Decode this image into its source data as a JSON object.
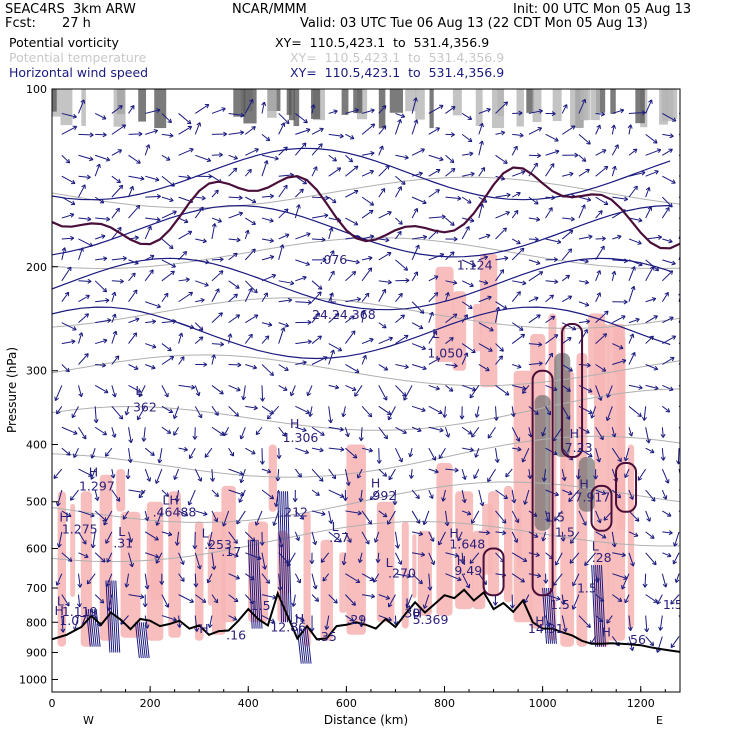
{
  "header": {
    "model": "SEAC4RS  3km ARW",
    "fcst_label": "Fcst:",
    "fcst_value": "27 h",
    "center": "NCAR/MMM",
    "init": "Init: 00 UTC Mon 05 Aug 13",
    "valid": "Valid: 03 UTC Tue 06 Aug 13 (22 CDT Mon 05 Aug 13)"
  },
  "legend": [
    {
      "name": "Potential vorticity",
      "xy": "XY=  110.5,423.1  to  531.4,356.9",
      "color": "#000000"
    },
    {
      "name": "Potential temperature",
      "xy": "XY=  110.5,423.1  to  531.4,356.9",
      "color": "#c0c0c0"
    },
    {
      "name": "Horizontal wind speed",
      "xy": "XY=  110.5,423.1  to  531.4,356.9",
      "color": "#1a1a80"
    }
  ],
  "chart_data": {
    "type": "cross-section",
    "xlabel": "Distance (km)",
    "ylabel": "Pressure (hPa)",
    "xlim": [
      0,
      1280
    ],
    "ylim": [
      1050,
      100
    ],
    "y_scale": "log",
    "x_ticks": [
      0,
      200,
      400,
      600,
      800,
      1000,
      1200
    ],
    "y_ticks": [
      100,
      200,
      300,
      400,
      500,
      600,
      700,
      800,
      900,
      1000
    ],
    "x_end_labels": [
      "W",
      "E"
    ],
    "terrain": {
      "distance_km": [
        0,
        30,
        60,
        80,
        100,
        120,
        140,
        160,
        180,
        200,
        220,
        240,
        260,
        280,
        300,
        320,
        340,
        360,
        380,
        400,
        420,
        440,
        460,
        480,
        500,
        520,
        540,
        560,
        580,
        600,
        620,
        640,
        660,
        680,
        700,
        720,
        740,
        760,
        780,
        800,
        820,
        840,
        860,
        880,
        900,
        920,
        940,
        960,
        980,
        1000,
        1020,
        1040,
        1060,
        1080,
        1100,
        1120,
        1140,
        1160,
        1180,
        1200,
        1220,
        1240,
        1260,
        1280
      ],
      "pressure_hPa": [
        855,
        840,
        815,
        780,
        808,
        770,
        792,
        822,
        790,
        795,
        812,
        805,
        795,
        820,
        810,
        840,
        828,
        826,
        795,
        760,
        790,
        810,
        715,
        780,
        852,
        812,
        855,
        852,
        812,
        808,
        800,
        808,
        820,
        790,
        815,
        775,
        740,
        770,
        745,
        720,
        728,
        705,
        735,
        712,
        760,
        742,
        768,
        735,
        800,
        820,
        820,
        832,
        842,
        860,
        870,
        870,
        868,
        870,
        872,
        875,
        882,
        888,
        893,
        898
      ]
    },
    "labels": [
      {
        "text": "H",
        "x": 15,
        "p": 540
      },
      {
        "text": "1.275",
        "x": 20,
        "p": 566
      },
      {
        "text": "L",
        "x": 135,
        "p": 572
      },
      {
        "text": ".31",
        "x": 125,
        "p": 598
      },
      {
        "text": "H",
        "x": 75,
        "p": 453
      },
      {
        "text": "1.297",
        "x": 55,
        "p": 479
      },
      {
        "text": "LH",
        "x": 225,
        "p": 505
      },
      {
        "text": ".46488",
        "x": 205,
        "p": 530
      },
      {
        "text": "L",
        "x": 305,
        "p": 575
      },
      {
        "text": ".253",
        "x": 310,
        "p": 601
      },
      {
        "text": ".17",
        "x": 345,
        "p": 618
      },
      {
        "text": ".212",
        "x": 465,
        "p": 530
      },
      {
        "text": "L",
        "x": 570,
        "p": 560
      },
      {
        "text": ".27",
        "x": 565,
        "p": 585
      },
      {
        "text": "L",
        "x": 680,
        "p": 645
      },
      {
        "text": ".270",
        "x": 685,
        "p": 672
      },
      {
        "text": "H",
        "x": 650,
        "p": 473
      },
      {
        "text": ".992",
        "x": 645,
        "p": 497
      },
      {
        "text": "H",
        "x": 485,
        "p": 375
      },
      {
        "text": "1.306",
        "x": 470,
        "p": 396
      },
      {
        "text": "L",
        "x": 565,
        "p": 230
      },
      {
        "text": "24.24.368",
        "x": 530,
        "p": 245
      },
      {
        "text": "L",
        "x": 775,
        "p": 264
      },
      {
        "text": "1.050",
        "x": 765,
        "p": 285
      },
      {
        "text": "L",
        "x": 170,
        "p": 330
      },
      {
        "text": "362",
        "x": 165,
        "p": 352
      },
      {
        "text": ".076",
        "x": 545,
        "p": 198
      },
      {
        "text": "1.124",
        "x": 825,
        "p": 202
      },
      {
        "text": "H",
        "x": 810,
        "p": 575
      },
      {
        "text": "1.648",
        "x": 810,
        "p": 600
      },
      {
        "text": "H",
        "x": 825,
        "p": 640
      },
      {
        "text": "9.49",
        "x": 820,
        "p": 665
      },
      {
        "text": "H",
        "x": 1055,
        "p": 390
      },
      {
        "text": "7.23",
        "x": 1045,
        "p": 412
      },
      {
        "text": "H",
        "x": 1075,
        "p": 475
      },
      {
        "text": "7.917",
        "x": 1065,
        "p": 500
      },
      {
        "text": "1.5",
        "x": 1005,
        "p": 540
      },
      {
        "text": "1.5",
        "x": 1025,
        "p": 573
      },
      {
        "text": "L",
        "x": 1100,
        "p": 605
      },
      {
        "text": ".28",
        "x": 1100,
        "p": 632
      },
      {
        "text": "1.5",
        "x": 1070,
        "p": 712
      },
      {
        "text": "1.5",
        "x": 1015,
        "p": 760
      },
      {
        "text": "1.5",
        "x": 1245,
        "p": 760
      },
      {
        "text": "H",
        "x": 495,
        "p": 802
      },
      {
        "text": "12.86",
        "x": 445,
        "p": 830
      },
      {
        "text": "H",
        "x": 985,
        "p": 810
      },
      {
        "text": "14.31",
        "x": 970,
        "p": 835
      },
      {
        "text": "L",
        "x": 720,
        "p": 755
      },
      {
        "text": ".30",
        "x": 710,
        "p": 785
      },
      {
        "text": "H",
        "x": 735,
        "p": 785
      },
      {
        "text": "5.369",
        "x": 735,
        "p": 805
      },
      {
        "text": ".29",
        "x": 600,
        "p": 805
      },
      {
        "text": ".35",
        "x": 540,
        "p": 860
      },
      {
        "text": "1.5",
        "x": 405,
        "p": 763
      },
      {
        "text": ".16",
        "x": 355,
        "p": 855
      },
      {
        "text": "H",
        "x": 300,
        "p": 835
      },
      {
        "text": "L",
        "x": 10,
        "p": 750
      },
      {
        "text": "H",
        "x": 5,
        "p": 778
      },
      {
        "text": "1.119",
        "x": 20,
        "p": 780
      },
      {
        "text": "1.07",
        "x": 15,
        "p": 808
      },
      {
        "text": "H",
        "x": 1120,
        "p": 845
      },
      {
        "text": ".56",
        "x": 1170,
        "p": 870
      }
    ]
  }
}
